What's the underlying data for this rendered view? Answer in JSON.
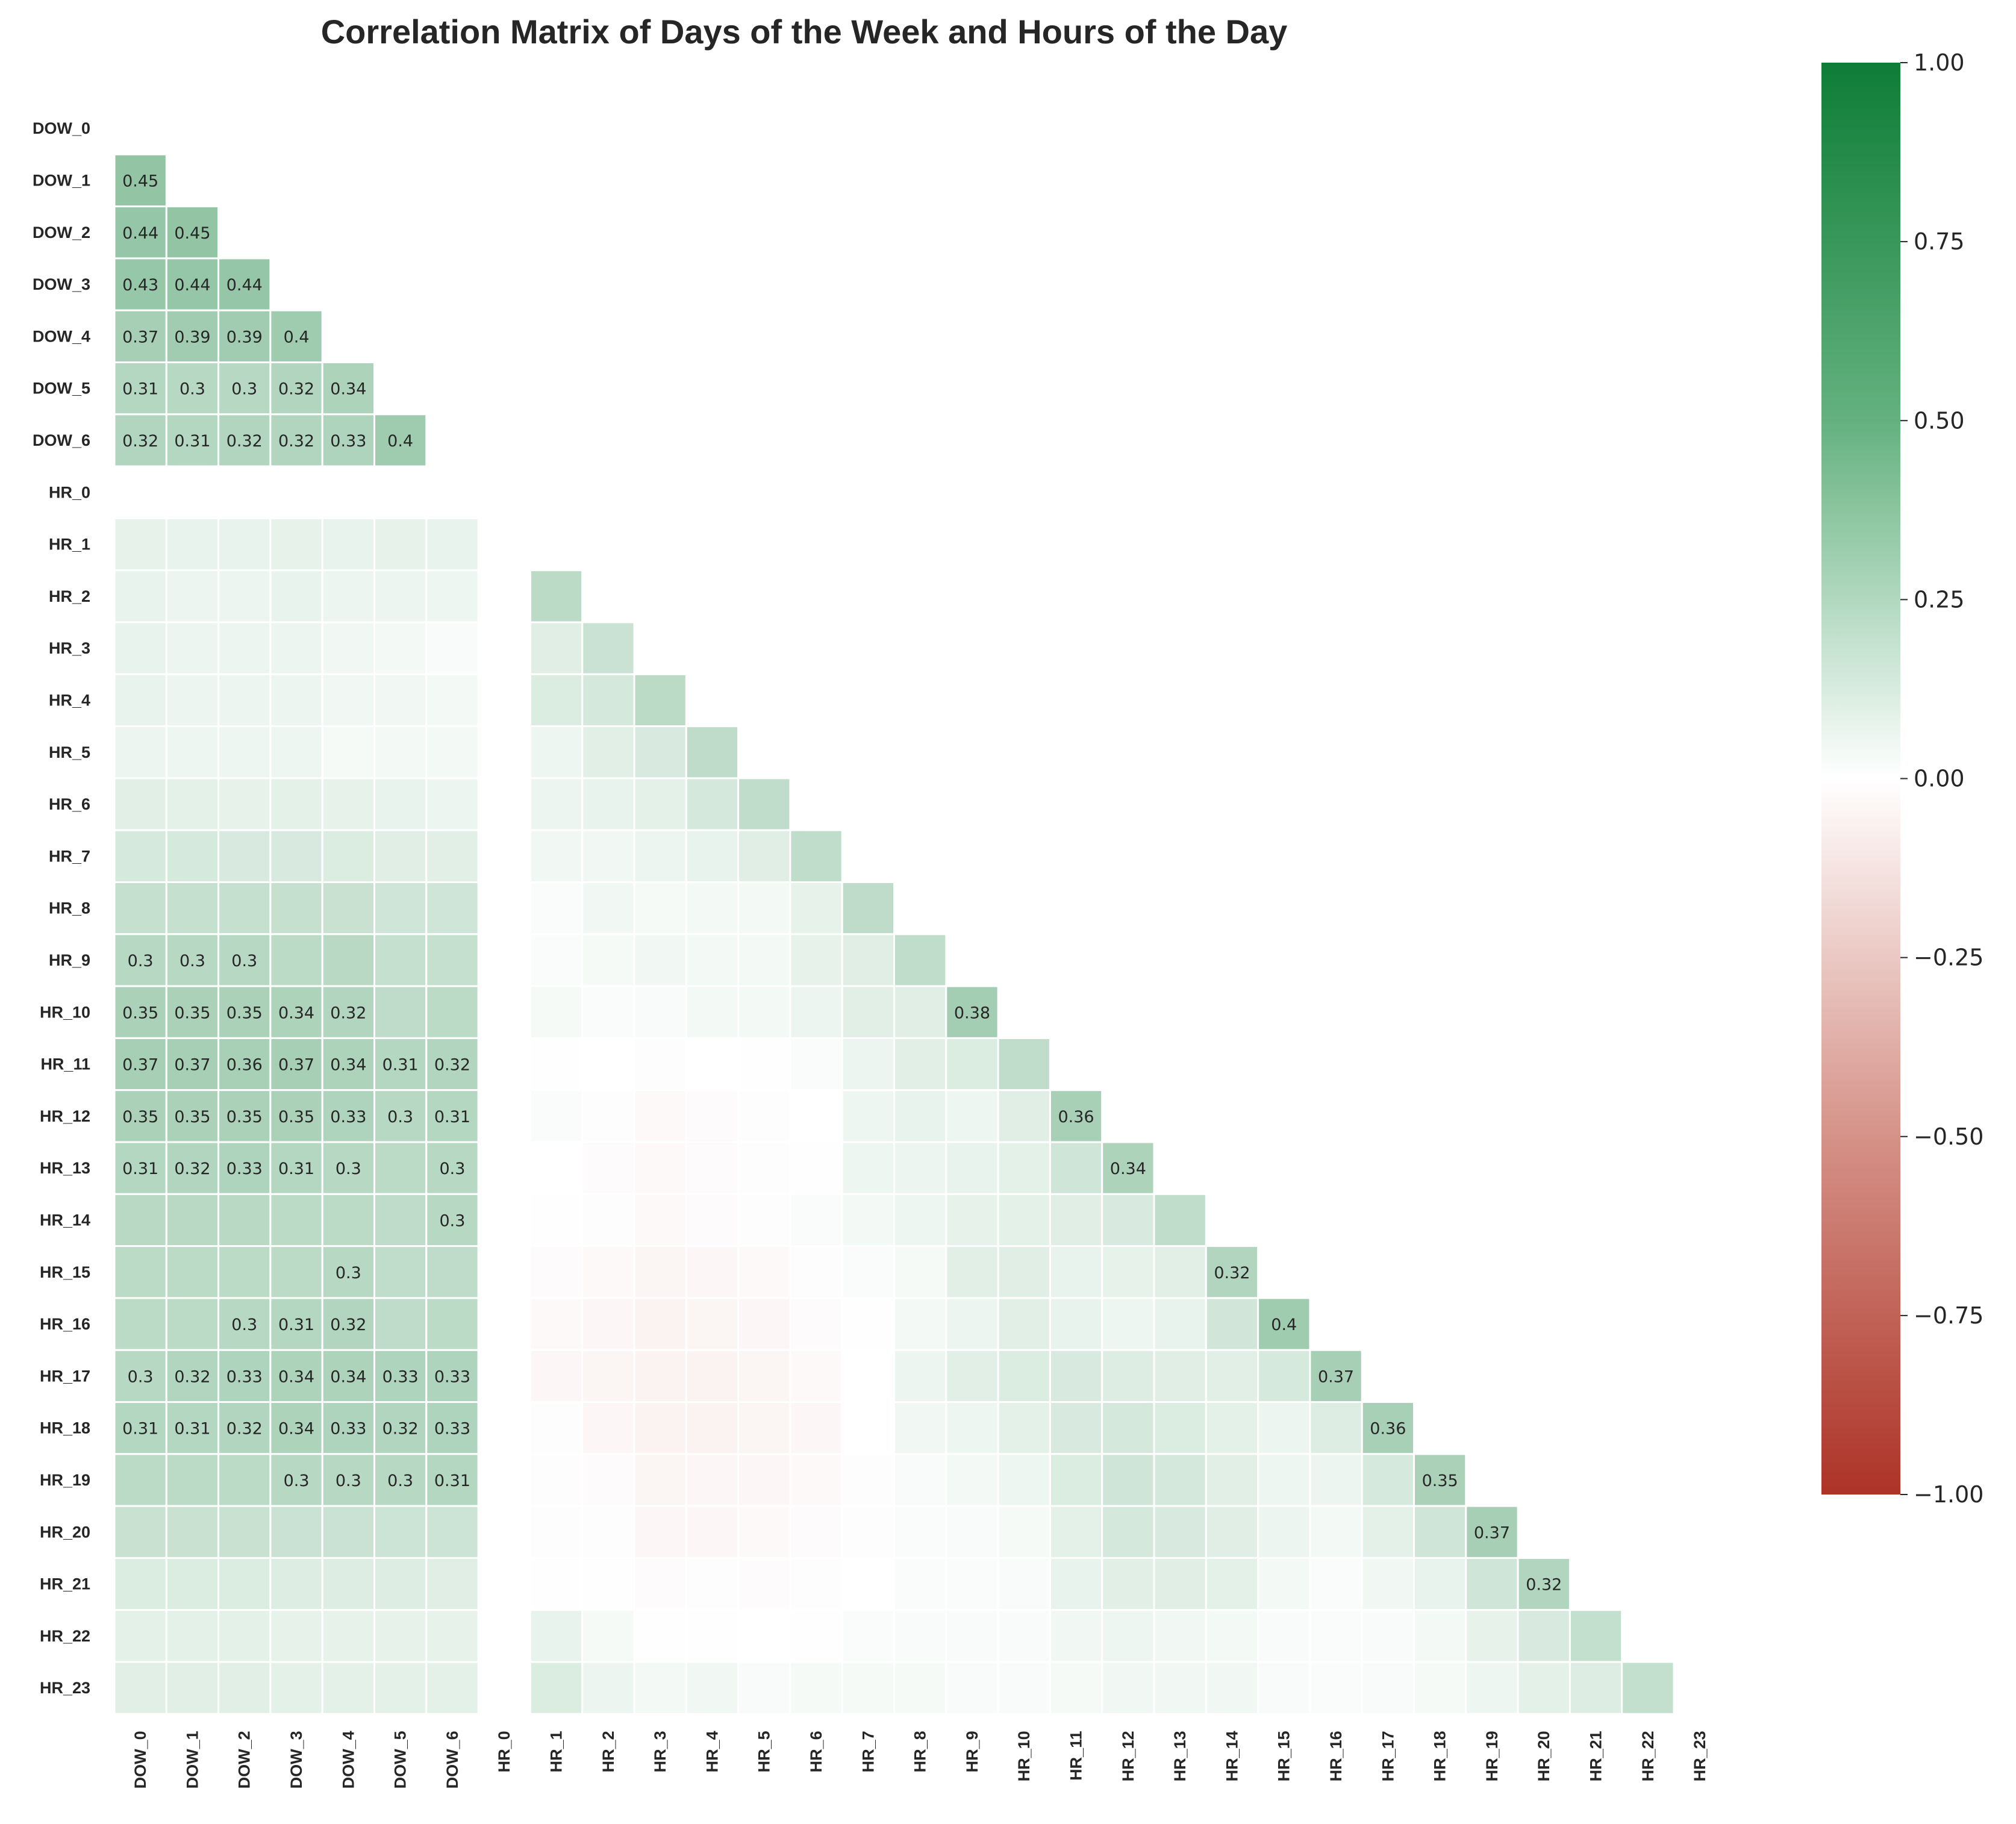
{
  "chart_data": {
    "type": "heatmap",
    "title": "Correlation Matrix of Days of the Week and Hours of the Day",
    "labels": [
      "DOW_0",
      "DOW_1",
      "DOW_2",
      "DOW_3",
      "DOW_4",
      "DOW_5",
      "DOW_6",
      "HR_0",
      "HR_1",
      "HR_2",
      "HR_3",
      "HR_4",
      "HR_5",
      "HR_6",
      "HR_7",
      "HR_8",
      "HR_9",
      "HR_10",
      "HR_11",
      "HR_12",
      "HR_13",
      "HR_14",
      "HR_15",
      "HR_16",
      "HR_17",
      "HR_18",
      "HR_19",
      "HR_20",
      "HR_21",
      "HR_22",
      "HR_23"
    ],
    "annotation_threshold": 0.3,
    "lower_triangle": [
      [],
      [
        0.45
      ],
      [
        0.44,
        0.45
      ],
      [
        0.43,
        0.44,
        0.44
      ],
      [
        0.37,
        0.39,
        0.39,
        0.4
      ],
      [
        0.31,
        0.3,
        0.3,
        0.32,
        0.34
      ],
      [
        0.32,
        0.31,
        0.32,
        0.32,
        0.33,
        0.4
      ],
      [
        null,
        null,
        null,
        null,
        null,
        null,
        null
      ],
      [
        0.1,
        0.09,
        0.09,
        0.1,
        0.09,
        0.1,
        0.09,
        null
      ],
      [
        0.09,
        0.08,
        0.08,
        0.09,
        0.08,
        0.08,
        0.07,
        null,
        0.28
      ],
      [
        0.09,
        0.08,
        0.08,
        0.08,
        0.06,
        0.05,
        0.03,
        null,
        0.13,
        0.22
      ],
      [
        0.09,
        0.08,
        0.08,
        0.08,
        0.06,
        0.06,
        0.05,
        null,
        0.15,
        0.18,
        0.28
      ],
      [
        0.08,
        0.07,
        0.07,
        0.07,
        0.04,
        0.05,
        0.05,
        null,
        0.07,
        0.12,
        0.16,
        0.27
      ],
      [
        0.12,
        0.11,
        0.1,
        0.11,
        0.1,
        0.09,
        0.08,
        null,
        0.08,
        0.09,
        0.11,
        0.18,
        0.26
      ],
      [
        0.17,
        0.17,
        0.16,
        0.16,
        0.15,
        0.13,
        0.12,
        null,
        0.06,
        0.06,
        0.08,
        0.09,
        0.13,
        0.26
      ],
      [
        0.24,
        0.24,
        0.24,
        0.24,
        0.23,
        0.2,
        0.2,
        null,
        0.02,
        0.06,
        0.04,
        0.05,
        0.05,
        0.1,
        0.27
      ],
      [
        0.3,
        0.3,
        0.3,
        0.28,
        0.29,
        0.24,
        0.24,
        null,
        0.02,
        0.04,
        0.06,
        0.05,
        0.05,
        0.1,
        0.13,
        0.26
      ],
      [
        0.35,
        0.35,
        0.35,
        0.34,
        0.32,
        0.27,
        0.28,
        null,
        0.04,
        0.02,
        0.03,
        0.05,
        0.05,
        0.08,
        0.12,
        0.13,
        0.38
      ],
      [
        0.37,
        0.37,
        0.36,
        0.37,
        0.34,
        0.31,
        0.32,
        null,
        0.01,
        0.0,
        -0.01,
        0.0,
        0.01,
        0.02,
        0.08,
        0.12,
        0.15,
        0.26
      ],
      [
        0.35,
        0.35,
        0.35,
        0.35,
        0.33,
        0.3,
        0.31,
        null,
        0.02,
        -0.01,
        -0.03,
        -0.02,
        -0.01,
        0.0,
        0.07,
        0.09,
        0.07,
        0.13,
        0.36
      ],
      [
        0.31,
        0.32,
        0.33,
        0.31,
        0.3,
        0.28,
        0.3,
        null,
        0.0,
        -0.02,
        -0.03,
        -0.02,
        -0.01,
        0.01,
        0.07,
        0.08,
        0.09,
        0.11,
        0.2,
        0.34
      ],
      [
        0.29,
        0.29,
        0.29,
        0.28,
        0.28,
        0.27,
        0.3,
        null,
        0.01,
        -0.01,
        -0.03,
        -0.02,
        -0.01,
        0.02,
        0.05,
        0.07,
        0.1,
        0.11,
        0.13,
        0.16,
        0.26
      ],
      [
        0.28,
        0.28,
        0.28,
        0.28,
        0.3,
        0.26,
        0.27,
        null,
        -0.02,
        -0.03,
        -0.05,
        -0.04,
        -0.03,
        -0.01,
        0.02,
        0.04,
        0.12,
        0.13,
        0.09,
        0.1,
        0.12,
        0.32
      ],
      [
        0.28,
        0.28,
        0.3,
        0.31,
        0.32,
        0.27,
        0.28,
        null,
        -0.03,
        -0.04,
        -0.06,
        -0.05,
        -0.04,
        -0.02,
        0.01,
        0.05,
        0.08,
        0.12,
        0.09,
        0.07,
        0.09,
        0.19,
        0.4
      ],
      [
        0.3,
        0.32,
        0.33,
        0.34,
        0.34,
        0.33,
        0.33,
        null,
        -0.04,
        -0.05,
        -0.06,
        -0.06,
        -0.05,
        -0.03,
        0.0,
        0.08,
        0.12,
        0.15,
        0.16,
        0.14,
        0.13,
        0.12,
        0.17,
        0.37
      ],
      [
        0.31,
        0.31,
        0.32,
        0.34,
        0.33,
        0.32,
        0.33,
        null,
        -0.01,
        -0.04,
        -0.06,
        -0.06,
        -0.05,
        -0.04,
        0.0,
        0.06,
        0.07,
        0.11,
        0.16,
        0.18,
        0.15,
        0.11,
        0.08,
        0.14,
        0.36
      ],
      [
        0.28,
        0.28,
        0.28,
        0.3,
        0.3,
        0.3,
        0.31,
        null,
        -0.01,
        -0.02,
        -0.05,
        -0.04,
        -0.04,
        -0.03,
        -0.01,
        0.03,
        0.05,
        0.07,
        0.15,
        0.2,
        0.18,
        0.12,
        0.07,
        0.08,
        0.17,
        0.35
      ],
      [
        0.23,
        0.23,
        0.23,
        0.22,
        0.22,
        0.21,
        0.21,
        null,
        -0.01,
        -0.01,
        -0.04,
        -0.04,
        -0.03,
        -0.02,
        -0.01,
        0.02,
        0.03,
        0.04,
        0.11,
        0.18,
        0.16,
        0.13,
        0.08,
        0.05,
        0.11,
        0.2,
        0.37
      ],
      [
        0.15,
        0.15,
        0.15,
        0.14,
        0.14,
        0.14,
        0.13,
        null,
        0.01,
        0.01,
        -0.02,
        -0.01,
        -0.02,
        -0.01,
        0.0,
        0.02,
        0.02,
        0.03,
        0.09,
        0.12,
        0.13,
        0.11,
        0.05,
        0.02,
        0.06,
        0.09,
        0.2,
        0.32
      ],
      [
        0.11,
        0.11,
        0.11,
        0.1,
        0.1,
        0.1,
        0.1,
        null,
        0.09,
        0.04,
        0.01,
        0.01,
        0.0,
        0.01,
        0.02,
        0.03,
        0.03,
        0.03,
        0.06,
        0.07,
        0.06,
        0.05,
        0.03,
        0.02,
        0.03,
        0.05,
        0.1,
        0.16,
        0.25
      ],
      [
        0.12,
        0.12,
        0.12,
        0.11,
        0.11,
        0.11,
        0.11,
        null,
        0.15,
        0.08,
        0.05,
        0.06,
        0.03,
        0.04,
        0.04,
        0.04,
        0.03,
        0.03,
        0.04,
        0.06,
        0.06,
        0.06,
        0.03,
        0.02,
        0.03,
        0.04,
        0.07,
        0.11,
        0.14,
        0.25
      ]
    ],
    "colorscale": {
      "min": -1.0,
      "max": 1.0,
      "low_color": "#ad3327",
      "mid_color": "#ffffff",
      "high_color": "#0e7d37"
    },
    "colorbar_ticks": [
      "1.00",
      "0.75",
      "0.50",
      "0.25",
      "0.00",
      "−0.25",
      "−0.50",
      "−0.75",
      "−1.00"
    ],
    "colorbar_tick_values": [
      1.0,
      0.75,
      0.5,
      0.25,
      0.0,
      -0.25,
      -0.5,
      -0.75,
      -1.0
    ]
  }
}
